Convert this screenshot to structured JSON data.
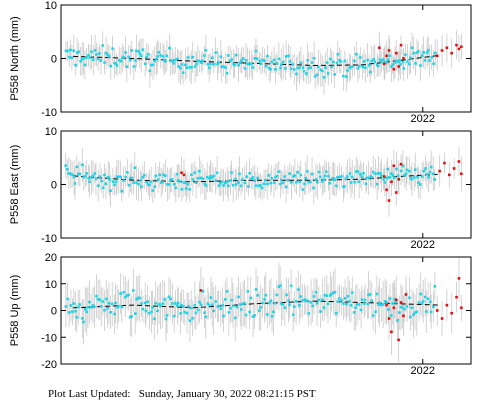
{
  "colors": {
    "normal_point": "#22d4e6",
    "recent_point": "#e01010",
    "error_bar": "#c8c8c8",
    "trend": "#000000",
    "frame": "#000000"
  },
  "footer": {
    "label": "Plot Last Updated:",
    "timestamp": "Sunday, January 30, 2022 08:21:15 PST"
  },
  "chart_data": [
    {
      "type": "scatter",
      "ylabel": "P558 North (mm)",
      "ylim": [
        -10,
        10
      ],
      "yticks": [
        -10,
        0,
        10
      ],
      "xlim": [
        2020.5,
        2022.2
      ],
      "xticks": [
        {
          "value": 2022.0,
          "label": "2022"
        }
      ],
      "error_bar_mm": 2.5,
      "noise_mm": 1.4,
      "series": [
        {
          "role": "trend",
          "x": [
            2020.55,
            2020.8,
            2021.05,
            2021.3,
            2021.55,
            2021.75,
            2021.9,
            2022.07
          ],
          "y": [
            0.4,
            0.0,
            -0.5,
            -0.9,
            -1.3,
            -1.2,
            -0.4,
            0.6
          ]
        },
        {
          "role": "normal",
          "x_range": [
            2020.52,
            2022.05
          ],
          "count": 230
        },
        {
          "role": "recent",
          "x": [
            2021.82,
            2021.84,
            2021.85,
            2021.86,
            2021.88,
            2021.89,
            2021.9,
            2021.91,
            2021.92,
            2022.06,
            2022.08,
            2022.1,
            2022.12,
            2022.14,
            2022.15,
            2022.16
          ],
          "y": [
            2.0,
            -1.0,
            0.5,
            1.5,
            -2.0,
            1.0,
            -1.5,
            2.5,
            0.0,
            0.5,
            1.5,
            2.0,
            1.0,
            2.5,
            1.8,
            2.2
          ]
        }
      ]
    },
    {
      "type": "scatter",
      "ylabel": "P558 East (mm)",
      "ylim": [
        -10,
        10
      ],
      "yticks": [
        -10,
        0,
        10
      ],
      "xlim": [
        2020.5,
        2022.2
      ],
      "xticks": [
        {
          "value": 2022.0,
          "label": "2022"
        }
      ],
      "error_bar_mm": 2.5,
      "noise_mm": 1.3,
      "series": [
        {
          "role": "trend",
          "x": [
            2020.55,
            2020.8,
            2021.05,
            2021.3,
            2021.55,
            2021.75,
            2021.9,
            2022.07
          ],
          "y": [
            1.6,
            0.8,
            0.5,
            0.8,
            0.8,
            1.0,
            1.5,
            1.9
          ]
        },
        {
          "role": "normal",
          "x_range": [
            2020.52,
            2022.05
          ],
          "count": 230
        },
        {
          "role": "recent",
          "x": [
            2021.0,
            2021.01,
            2021.84,
            2021.85,
            2021.86,
            2021.87,
            2021.88,
            2021.89,
            2021.9,
            2021.91,
            2022.07,
            2022.09,
            2022.11,
            2022.13,
            2022.15,
            2022.16
          ],
          "y": [
            2.2,
            1.8,
            1.5,
            -1.0,
            -3.0,
            0.5,
            3.5,
            -1.5,
            1.0,
            3.8,
            2.5,
            4.0,
            1.8,
            3.0,
            4.3,
            2.0
          ]
        }
      ]
    },
    {
      "type": "scatter",
      "ylabel": "P558 Up (mm)",
      "ylim": [
        -20,
        20
      ],
      "yticks": [
        -20,
        -10,
        0,
        10,
        20
      ],
      "xlim": [
        2020.5,
        2022.2
      ],
      "xticks": [
        {
          "value": 2022.0,
          "label": "2022"
        }
      ],
      "error_bar_mm": 7.0,
      "noise_mm": 4.0,
      "series": [
        {
          "role": "trend",
          "x": [
            2020.55,
            2020.8,
            2021.05,
            2021.3,
            2021.55,
            2021.75,
            2021.9,
            2022.07
          ],
          "y": [
            1.0,
            2.0,
            1.0,
            2.5,
            3.5,
            3.0,
            2.5,
            2.0
          ]
        },
        {
          "role": "normal",
          "x_range": [
            2020.52,
            2022.05
          ],
          "count": 230
        },
        {
          "role": "recent",
          "x": [
            2021.08,
            2021.85,
            2021.86,
            2021.87,
            2021.88,
            2021.89,
            2021.9,
            2021.91,
            2021.92,
            2021.93,
            2022.06,
            2022.08,
            2022.1,
            2022.12,
            2022.14,
            2022.15,
            2022.16
          ],
          "y": [
            7.5,
            2.0,
            -3.0,
            -8.0,
            1.0,
            4.0,
            -11.0,
            3.0,
            -2.0,
            6.0,
            0.0,
            -3.0,
            2.0,
            -1.0,
            5.0,
            12.0,
            1.0
          ]
        }
      ]
    }
  ]
}
